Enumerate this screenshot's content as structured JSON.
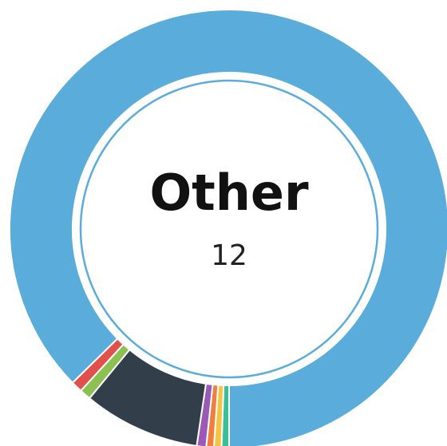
{
  "chart_data": {
    "type": "donut",
    "center_label": "Other",
    "center_value": 12,
    "values": [
      2,
      2,
      2,
      2.5,
      31,
      3,
      3,
      314.5
    ],
    "colors": [
      "#3cbf98",
      "#f4c542",
      "#f07f3c",
      "#9b59b6",
      "#323f4b",
      "#8cc152",
      "#e2504c",
      "#5aacda"
    ]
  }
}
